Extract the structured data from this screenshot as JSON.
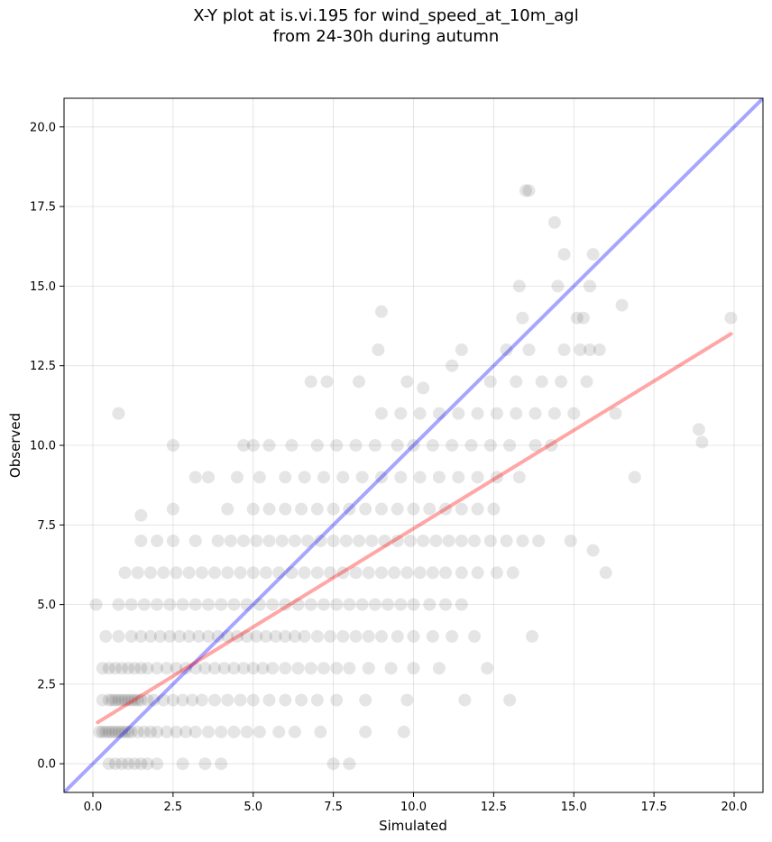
{
  "chart_data": {
    "type": "scatter",
    "title_lines": [
      "X-Y plot at is.vi.195 for wind_speed_at_10m_agl",
      "from 24-30h during autumn"
    ],
    "xlabel": "Simulated",
    "ylabel": "Observed",
    "xlim": [
      -0.9,
      20.9
    ],
    "ylim": [
      -0.9,
      20.9
    ],
    "xticks": [
      0.0,
      2.5,
      5.0,
      7.5,
      10.0,
      12.5,
      15.0,
      17.5,
      20.0
    ],
    "yticks": [
      0.0,
      2.5,
      5.0,
      7.5,
      10.0,
      12.5,
      15.0,
      17.5,
      20.0
    ],
    "tick_labels": [
      "0.0",
      "2.5",
      "5.0",
      "7.5",
      "10.0",
      "12.5",
      "15.0",
      "17.5",
      "20.0"
    ],
    "grid": true,
    "colors": {
      "points": "#000000",
      "identity_line": "#0000ff",
      "fit_line": "#ff0000",
      "grid": "#b0b0b0"
    },
    "lines": [
      {
        "kind": "identity",
        "x": [
          -0.9,
          20.9
        ],
        "y": [
          -0.9,
          20.9
        ]
      },
      {
        "kind": "fit",
        "x": [
          0.15,
          19.9
        ],
        "y": [
          1.3,
          13.5
        ]
      }
    ],
    "points": [
      [
        0.5,
        0
      ],
      [
        0.7,
        0
      ],
      [
        0.9,
        0
      ],
      [
        1.1,
        0
      ],
      [
        1.3,
        0
      ],
      [
        1.5,
        0
      ],
      [
        1.7,
        0
      ],
      [
        2.0,
        0
      ],
      [
        2.8,
        0
      ],
      [
        3.5,
        0
      ],
      [
        7.5,
        0
      ],
      [
        8.0,
        0
      ],
      [
        4.0,
        0
      ],
      [
        0.2,
        1
      ],
      [
        0.3,
        1
      ],
      [
        0.4,
        1
      ],
      [
        0.5,
        1
      ],
      [
        0.6,
        1
      ],
      [
        0.7,
        1
      ],
      [
        0.8,
        1
      ],
      [
        0.9,
        1
      ],
      [
        1.0,
        1
      ],
      [
        1.1,
        1
      ],
      [
        1.2,
        1
      ],
      [
        1.4,
        1
      ],
      [
        1.6,
        1
      ],
      [
        1.8,
        1
      ],
      [
        2.0,
        1
      ],
      [
        2.3,
        1
      ],
      [
        2.6,
        1
      ],
      [
        2.9,
        1
      ],
      [
        3.2,
        1
      ],
      [
        3.6,
        1
      ],
      [
        4.0,
        1
      ],
      [
        4.4,
        1
      ],
      [
        4.8,
        1
      ],
      [
        5.2,
        1
      ],
      [
        5.8,
        1
      ],
      [
        6.3,
        1
      ],
      [
        7.1,
        1
      ],
      [
        8.5,
        1
      ],
      [
        9.7,
        1
      ],
      [
        0.1,
        5
      ],
      [
        0.3,
        2
      ],
      [
        0.5,
        2
      ],
      [
        0.6,
        2
      ],
      [
        0.7,
        2
      ],
      [
        0.8,
        2
      ],
      [
        0.9,
        2
      ],
      [
        1.0,
        2
      ],
      [
        1.1,
        2
      ],
      [
        1.2,
        2
      ],
      [
        1.3,
        2
      ],
      [
        1.4,
        2
      ],
      [
        1.5,
        2
      ],
      [
        1.7,
        2
      ],
      [
        1.9,
        2
      ],
      [
        2.2,
        2
      ],
      [
        2.5,
        2
      ],
      [
        2.8,
        2
      ],
      [
        3.1,
        2
      ],
      [
        3.4,
        2
      ],
      [
        3.8,
        2
      ],
      [
        4.2,
        2
      ],
      [
        4.6,
        2
      ],
      [
        5.0,
        2
      ],
      [
        5.5,
        2
      ],
      [
        6.0,
        2
      ],
      [
        6.5,
        2
      ],
      [
        7.0,
        2
      ],
      [
        7.6,
        2
      ],
      [
        8.5,
        2
      ],
      [
        9.8,
        2
      ],
      [
        11.6,
        2
      ],
      [
        13.0,
        2
      ],
      [
        0.3,
        3
      ],
      [
        0.5,
        3
      ],
      [
        0.7,
        3
      ],
      [
        0.9,
        3
      ],
      [
        1.1,
        3
      ],
      [
        1.3,
        3
      ],
      [
        1.5,
        3
      ],
      [
        1.7,
        3
      ],
      [
        2.0,
        3
      ],
      [
        2.3,
        3
      ],
      [
        2.6,
        3
      ],
      [
        2.9,
        3
      ],
      [
        3.2,
        3
      ],
      [
        3.5,
        3
      ],
      [
        3.8,
        3
      ],
      [
        4.1,
        3
      ],
      [
        4.4,
        3
      ],
      [
        4.7,
        3
      ],
      [
        5.0,
        3
      ],
      [
        5.3,
        3
      ],
      [
        5.6,
        3
      ],
      [
        6.0,
        3
      ],
      [
        6.4,
        3
      ],
      [
        6.8,
        3
      ],
      [
        7.2,
        3
      ],
      [
        7.6,
        3
      ],
      [
        8.0,
        3
      ],
      [
        8.6,
        3
      ],
      [
        9.3,
        3
      ],
      [
        10.0,
        3
      ],
      [
        10.8,
        3
      ],
      [
        12.3,
        3
      ],
      [
        0.4,
        4
      ],
      [
        0.8,
        4
      ],
      [
        1.2,
        4
      ],
      [
        1.5,
        4
      ],
      [
        1.8,
        4
      ],
      [
        2.1,
        4
      ],
      [
        2.4,
        4
      ],
      [
        2.7,
        4
      ],
      [
        3.0,
        4
      ],
      [
        3.3,
        4
      ],
      [
        3.6,
        4
      ],
      [
        3.9,
        4
      ],
      [
        4.2,
        4
      ],
      [
        4.5,
        4
      ],
      [
        4.8,
        4
      ],
      [
        5.1,
        4
      ],
      [
        5.4,
        4
      ],
      [
        5.7,
        4
      ],
      [
        6.0,
        4
      ],
      [
        6.3,
        4
      ],
      [
        6.6,
        4
      ],
      [
        7.0,
        4
      ],
      [
        7.4,
        4
      ],
      [
        7.8,
        4
      ],
      [
        8.2,
        4
      ],
      [
        8.6,
        4
      ],
      [
        9.0,
        4
      ],
      [
        9.5,
        4
      ],
      [
        10.0,
        4
      ],
      [
        10.6,
        4
      ],
      [
        11.2,
        4
      ],
      [
        11.9,
        4
      ],
      [
        13.7,
        4
      ],
      [
        0.8,
        5
      ],
      [
        1.2,
        5
      ],
      [
        1.6,
        5
      ],
      [
        2.0,
        5
      ],
      [
        2.4,
        5
      ],
      [
        2.8,
        5
      ],
      [
        3.2,
        5
      ],
      [
        3.6,
        5
      ],
      [
        4.0,
        5
      ],
      [
        4.4,
        5
      ],
      [
        4.8,
        5
      ],
      [
        5.2,
        5
      ],
      [
        5.6,
        5
      ],
      [
        6.0,
        5
      ],
      [
        6.4,
        5
      ],
      [
        6.8,
        5
      ],
      [
        7.2,
        5
      ],
      [
        7.6,
        5
      ],
      [
        8.0,
        5
      ],
      [
        8.4,
        5
      ],
      [
        8.8,
        5
      ],
      [
        9.2,
        5
      ],
      [
        9.6,
        5
      ],
      [
        10.0,
        5
      ],
      [
        10.5,
        5
      ],
      [
        11.0,
        5
      ],
      [
        11.5,
        5
      ],
      [
        1.0,
        6
      ],
      [
        1.4,
        6
      ],
      [
        1.8,
        6
      ],
      [
        2.2,
        6
      ],
      [
        2.6,
        6
      ],
      [
        3.0,
        6
      ],
      [
        3.4,
        6
      ],
      [
        3.8,
        6
      ],
      [
        4.2,
        6
      ],
      [
        4.6,
        6
      ],
      [
        5.0,
        6
      ],
      [
        5.4,
        6
      ],
      [
        5.8,
        6
      ],
      [
        6.2,
        6
      ],
      [
        6.6,
        6
      ],
      [
        7.0,
        6
      ],
      [
        7.4,
        6
      ],
      [
        7.8,
        6
      ],
      [
        8.2,
        6
      ],
      [
        8.6,
        6
      ],
      [
        9.0,
        6
      ],
      [
        9.4,
        6
      ],
      [
        9.8,
        6
      ],
      [
        10.2,
        6
      ],
      [
        10.6,
        6
      ],
      [
        11.0,
        6
      ],
      [
        11.5,
        6
      ],
      [
        12.0,
        6
      ],
      [
        12.6,
        6
      ],
      [
        13.1,
        6
      ],
      [
        16.0,
        6
      ],
      [
        1.5,
        7
      ],
      [
        2.0,
        7
      ],
      [
        2.5,
        7
      ],
      [
        3.2,
        7
      ],
      [
        3.9,
        7
      ],
      [
        4.3,
        7
      ],
      [
        4.7,
        7
      ],
      [
        5.1,
        7
      ],
      [
        5.5,
        7
      ],
      [
        5.9,
        7
      ],
      [
        6.3,
        7
      ],
      [
        6.7,
        7
      ],
      [
        7.1,
        7
      ],
      [
        7.5,
        7
      ],
      [
        7.9,
        7
      ],
      [
        8.3,
        7
      ],
      [
        8.7,
        7
      ],
      [
        9.1,
        7
      ],
      [
        9.5,
        7
      ],
      [
        9.9,
        7
      ],
      [
        10.3,
        7
      ],
      [
        10.7,
        7
      ],
      [
        11.1,
        7
      ],
      [
        11.5,
        7
      ],
      [
        11.9,
        7
      ],
      [
        12.4,
        7
      ],
      [
        12.9,
        7
      ],
      [
        13.4,
        7
      ],
      [
        13.9,
        7
      ],
      [
        14.9,
        7
      ],
      [
        15.6,
        6.7
      ],
      [
        1.5,
        7.8
      ],
      [
        2.5,
        8
      ],
      [
        4.2,
        8
      ],
      [
        5.0,
        8
      ],
      [
        5.5,
        8
      ],
      [
        6.0,
        8
      ],
      [
        6.5,
        8
      ],
      [
        7.0,
        8
      ],
      [
        7.5,
        8
      ],
      [
        8.0,
        8
      ],
      [
        8.5,
        8
      ],
      [
        9.0,
        8
      ],
      [
        9.5,
        8
      ],
      [
        10.0,
        8
      ],
      [
        10.5,
        8
      ],
      [
        11.0,
        8
      ],
      [
        11.5,
        8
      ],
      [
        12.0,
        8
      ],
      [
        12.5,
        8
      ],
      [
        3.2,
        9
      ],
      [
        3.6,
        9
      ],
      [
        4.5,
        9
      ],
      [
        5.2,
        9
      ],
      [
        6.0,
        9
      ],
      [
        6.6,
        9
      ],
      [
        7.2,
        9
      ],
      [
        7.8,
        9
      ],
      [
        8.4,
        9
      ],
      [
        9.0,
        9
      ],
      [
        9.6,
        9
      ],
      [
        10.2,
        9
      ],
      [
        10.8,
        9
      ],
      [
        11.4,
        9
      ],
      [
        12.0,
        9
      ],
      [
        12.6,
        9
      ],
      [
        13.3,
        9
      ],
      [
        16.9,
        9
      ],
      [
        2.5,
        10
      ],
      [
        4.7,
        10
      ],
      [
        5.0,
        10
      ],
      [
        5.5,
        10
      ],
      [
        6.2,
        10
      ],
      [
        7.0,
        10
      ],
      [
        7.6,
        10
      ],
      [
        8.2,
        10
      ],
      [
        8.8,
        10
      ],
      [
        9.5,
        10
      ],
      [
        10.0,
        10
      ],
      [
        10.6,
        10
      ],
      [
        11.2,
        10
      ],
      [
        11.8,
        10
      ],
      [
        12.4,
        10
      ],
      [
        13.0,
        10
      ],
      [
        13.8,
        10
      ],
      [
        14.3,
        10
      ],
      [
        18.9,
        10.5
      ],
      [
        19.0,
        10.1
      ],
      [
        0.8,
        11
      ],
      [
        9.0,
        11
      ],
      [
        9.6,
        11
      ],
      [
        10.2,
        11
      ],
      [
        10.8,
        11
      ],
      [
        11.4,
        11
      ],
      [
        12.0,
        11
      ],
      [
        12.6,
        11
      ],
      [
        13.2,
        11
      ],
      [
        13.8,
        11
      ],
      [
        14.4,
        11
      ],
      [
        15.0,
        11
      ],
      [
        16.3,
        11
      ],
      [
        6.8,
        12
      ],
      [
        7.3,
        12
      ],
      [
        8.3,
        12
      ],
      [
        9.8,
        12
      ],
      [
        10.3,
        11.8
      ],
      [
        11.2,
        12.5
      ],
      [
        12.4,
        12
      ],
      [
        13.2,
        12
      ],
      [
        14.0,
        12
      ],
      [
        14.6,
        12
      ],
      [
        15.4,
        12
      ],
      [
        8.9,
        13
      ],
      [
        11.5,
        13
      ],
      [
        12.9,
        13
      ],
      [
        13.6,
        13
      ],
      [
        14.7,
        13
      ],
      [
        15.2,
        13
      ],
      [
        15.5,
        13
      ],
      [
        15.8,
        13
      ],
      [
        9.0,
        14.2
      ],
      [
        13.4,
        14
      ],
      [
        15.1,
        14
      ],
      [
        15.3,
        14
      ],
      [
        16.5,
        14.4
      ],
      [
        19.9,
        14
      ],
      [
        13.3,
        15
      ],
      [
        14.5,
        15
      ],
      [
        15.5,
        15
      ],
      [
        14.7,
        16
      ],
      [
        15.6,
        16
      ],
      [
        14.4,
        17
      ],
      [
        13.5,
        18
      ],
      [
        13.6,
        18
      ]
    ]
  }
}
